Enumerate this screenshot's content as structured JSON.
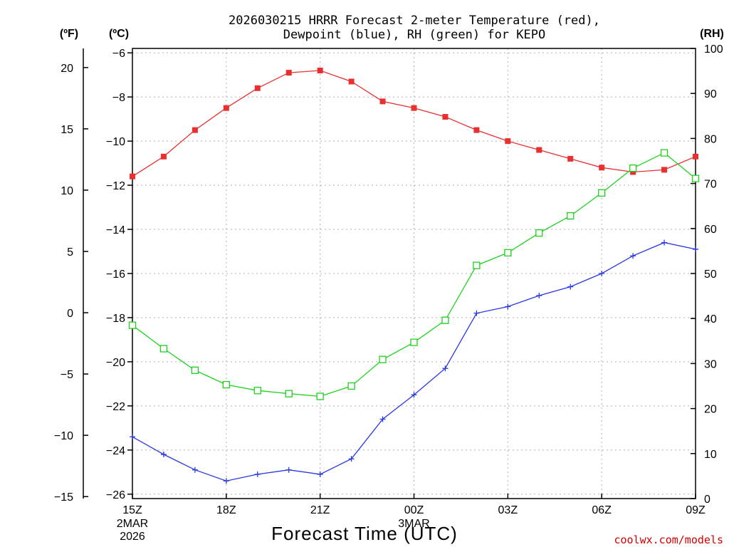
{
  "title_line1": "2026030215 HRRR Forecast 2-meter Temperature (red),",
  "title_line2": "Dewpoint (blue), RH (green) for KEPO",
  "axis_units": {
    "fahrenheit": "(ºF)",
    "celsius": "(ºC)",
    "rh": "(RH)"
  },
  "xlabel": "Forecast Time (UTC)",
  "credit": "coolwx.com/models",
  "colors": {
    "temperature": "#e83030",
    "dewpoint": "#2838e0",
    "rh": "#20d020"
  },
  "chart_data": {
    "type": "line",
    "title": "2026030215 HRRR Forecast 2-meter Temperature (red), Dewpoint (blue), RH (green) for KEPO",
    "xlabel": "Forecast Time (UTC)",
    "x_hours": [
      0,
      1,
      2,
      3,
      4,
      5,
      6,
      7,
      8,
      9,
      10,
      11,
      12,
      13,
      14,
      15,
      16,
      17,
      18
    ],
    "x_tick_hours": [
      0,
      3,
      6,
      9,
      12,
      15,
      18
    ],
    "x_tick_labels": [
      "15Z",
      "18Z",
      "21Z",
      "00Z",
      "03Z",
      "06Z",
      "09Z"
    ],
    "x_date_labels": [
      {
        "hour": 0,
        "lines": [
          "2MAR",
          "2026"
        ]
      },
      {
        "hour": 9,
        "lines": [
          "3MAR"
        ]
      }
    ],
    "xlim": [
      0,
      18
    ],
    "ylim_celsius": [
      -26.2,
      -5.8
    ],
    "ylim_rh": [
      0,
      100
    ],
    "y_ticks_celsius": [
      -6,
      -8,
      -10,
      -12,
      -14,
      -16,
      -18,
      -20,
      -22,
      -24,
      -26
    ],
    "y_ticks_fahrenheit": [
      20,
      15,
      10,
      5,
      0,
      -5,
      -10,
      -15
    ],
    "y_ticks_rh": [
      100,
      90,
      80,
      70,
      60,
      50,
      40,
      30,
      20,
      10,
      0
    ],
    "series": [
      {
        "name": "Temperature",
        "axis": "celsius",
        "marker": "square-filled",
        "values": [
          -11.6,
          -10.7,
          -9.5,
          -8.5,
          -7.6,
          -6.9,
          -6.8,
          -7.3,
          -8.2,
          -8.5,
          -8.9,
          -9.5,
          -10.0,
          -10.4,
          -10.8,
          -11.2,
          -11.4,
          -11.3,
          -10.7
        ]
      },
      {
        "name": "Dewpoint",
        "axis": "celsius",
        "marker": "plus",
        "values": [
          -23.4,
          -24.2,
          -24.9,
          -25.4,
          -25.1,
          -24.9,
          -25.1,
          -24.4,
          -22.6,
          -21.5,
          -20.3,
          -17.8,
          -17.5,
          -17.0,
          -16.6,
          -16.0,
          -15.2,
          -14.6,
          -14.9
        ]
      },
      {
        "name": "RH",
        "axis": "rh",
        "marker": "square-open",
        "values": [
          38.5,
          33.3,
          28.5,
          25.3,
          24.0,
          23.3,
          22.7,
          25.0,
          30.9,
          34.7,
          39.6,
          51.8,
          54.6,
          59.0,
          62.8,
          67.9,
          73.4,
          76.8,
          71.1
        ]
      }
    ]
  }
}
